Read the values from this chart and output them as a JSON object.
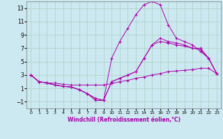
{
  "xlabel": "Windchill (Refroidissement éolien,°C)",
  "background_color": "#cce8f0",
  "grid_color": "#b0d4cc",
  "line_color": "#aa00aa",
  "hours": [
    0,
    1,
    2,
    3,
    4,
    5,
    6,
    7,
    8,
    9,
    10,
    11,
    12,
    13,
    14,
    15,
    16,
    17,
    18,
    19,
    20,
    21,
    22,
    23
  ],
  "line1": [
    3.0,
    2.0,
    1.8,
    1.8,
    1.6,
    1.5,
    1.5,
    1.5,
    1.5,
    1.5,
    1.7,
    2.0,
    2.2,
    2.5,
    2.7,
    3.0,
    3.2,
    3.5,
    3.6,
    3.7,
    3.8,
    4.0,
    4.0,
    3.2
  ],
  "line2": [
    3.0,
    2.0,
    1.8,
    1.5,
    1.3,
    1.2,
    0.8,
    0.2,
    -0.5,
    -0.8,
    2.0,
    2.5,
    3.0,
    3.5,
    5.5,
    7.5,
    8.0,
    7.8,
    7.5,
    7.3,
    7.0,
    6.8,
    5.5,
    3.2
  ],
  "line3": [
    3.0,
    2.0,
    1.8,
    1.5,
    1.3,
    1.2,
    0.8,
    0.2,
    -0.5,
    -0.8,
    2.0,
    2.5,
    3.0,
    3.5,
    5.5,
    7.5,
    8.5,
    8.0,
    7.8,
    7.5,
    7.0,
    7.0,
    5.5,
    3.2
  ],
  "line4": [
    3.0,
    2.0,
    1.8,
    1.5,
    1.3,
    1.2,
    0.8,
    0.2,
    -0.8,
    -0.8,
    5.5,
    8.0,
    10.0,
    12.0,
    13.5,
    14.0,
    13.5,
    10.5,
    8.5,
    8.0,
    7.5,
    6.5,
    5.5,
    3.2
  ],
  "ylim": [
    -2.0,
    14.0
  ],
  "yticks": [
    -1,
    1,
    3,
    5,
    7,
    9,
    11,
    13
  ],
  "xlim": [
    -0.5,
    23.5
  ],
  "xticks": [
    0,
    1,
    2,
    3,
    4,
    5,
    6,
    7,
    8,
    9,
    10,
    11,
    12,
    13,
    14,
    15,
    16,
    17,
    18,
    19,
    20,
    21,
    22,
    23
  ],
  "xlabel_fontsize": 5.5,
  "tick_fontsize_x": 4.5,
  "tick_fontsize_y": 5.5
}
